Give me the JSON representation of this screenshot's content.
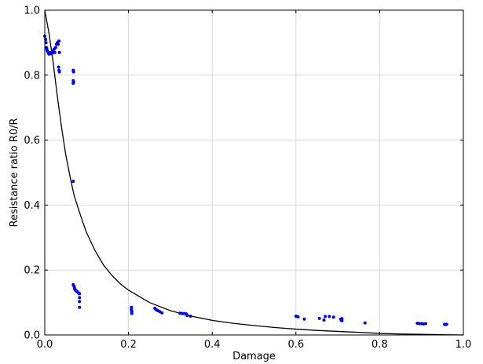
{
  "chart_data": {
    "type": "scatter",
    "title": "",
    "xlabel": "Damage",
    "ylabel": "Resistance ratio R0/R",
    "xlim": [
      0.0,
      1.0
    ],
    "ylim": [
      0.0,
      1.0
    ],
    "grid": true,
    "x_ticks": [
      "0.0",
      "0.2",
      "0.4",
      "0.6",
      "0.8",
      "1.0"
    ],
    "y_ticks": [
      "0.0",
      "0.2",
      "0.4",
      "0.6",
      "0.8",
      "1.0"
    ],
    "colors": {
      "points": "#0000ff",
      "curve": "#000000",
      "grid": "#d9d9d9"
    },
    "series": [
      {
        "type": "scatter",
        "points": [
          [
            0.0,
            0.92
          ],
          [
            0.002,
            0.91
          ],
          [
            0.003,
            0.9
          ],
          [
            0.004,
            0.885
          ],
          [
            0.005,
            0.88
          ],
          [
            0.006,
            0.875
          ],
          [
            0.008,
            0.87
          ],
          [
            0.01,
            0.865
          ],
          [
            0.012,
            0.868
          ],
          [
            0.014,
            0.87
          ],
          [
            0.016,
            0.866
          ],
          [
            0.018,
            0.868
          ],
          [
            0.02,
            0.874
          ],
          [
            0.022,
            0.88
          ],
          [
            0.024,
            0.87
          ],
          [
            0.026,
            0.885
          ],
          [
            0.028,
            0.895
          ],
          [
            0.03,
            0.9
          ],
          [
            0.032,
            0.895
          ],
          [
            0.034,
            0.905
          ],
          [
            0.035,
            0.87
          ],
          [
            0.033,
            0.825
          ],
          [
            0.034,
            0.815
          ],
          [
            0.035,
            0.81
          ],
          [
            0.068,
            0.815
          ],
          [
            0.069,
            0.81
          ],
          [
            0.068,
            0.783
          ],
          [
            0.069,
            0.778
          ],
          [
            0.068,
            0.775
          ],
          [
            0.068,
            0.473
          ],
          [
            0.068,
            0.155
          ],
          [
            0.07,
            0.15
          ],
          [
            0.071,
            0.145
          ],
          [
            0.072,
            0.14
          ],
          [
            0.074,
            0.137
          ],
          [
            0.076,
            0.135
          ],
          [
            0.078,
            0.133
          ],
          [
            0.08,
            0.13
          ],
          [
            0.082,
            0.128
          ],
          [
            0.083,
            0.127
          ],
          [
            0.083,
            0.115
          ],
          [
            0.083,
            0.103
          ],
          [
            0.083,
            0.085
          ],
          [
            0.207,
            0.085
          ],
          [
            0.207,
            0.078
          ],
          [
            0.208,
            0.072
          ],
          [
            0.208,
            0.066
          ],
          [
            0.263,
            0.082
          ],
          [
            0.266,
            0.078
          ],
          [
            0.27,
            0.075
          ],
          [
            0.275,
            0.072
          ],
          [
            0.28,
            0.068
          ],
          [
            0.323,
            0.067
          ],
          [
            0.328,
            0.066
          ],
          [
            0.333,
            0.066
          ],
          [
            0.338,
            0.065
          ],
          [
            0.34,
            0.06
          ],
          [
            0.348,
            0.058
          ],
          [
            0.6,
            0.058
          ],
          [
            0.605,
            0.056
          ],
          [
            0.62,
            0.049
          ],
          [
            0.656,
            0.051
          ],
          [
            0.667,
            0.046
          ],
          [
            0.67,
            0.057
          ],
          [
            0.68,
            0.057
          ],
          [
            0.69,
            0.055
          ],
          [
            0.707,
            0.049
          ],
          [
            0.708,
            0.046
          ],
          [
            0.71,
            0.044
          ],
          [
            0.71,
            0.05
          ],
          [
            0.765,
            0.037
          ],
          [
            0.89,
            0.036
          ],
          [
            0.895,
            0.035
          ],
          [
            0.9,
            0.035
          ],
          [
            0.905,
            0.034
          ],
          [
            0.91,
            0.035
          ],
          [
            0.955,
            0.033
          ],
          [
            0.957,
            0.032
          ],
          [
            0.96,
            0.033
          ]
        ]
      },
      {
        "type": "line",
        "points": [
          [
            0.0,
            1.0
          ],
          [
            0.01,
            0.93
          ],
          [
            0.02,
            0.84
          ],
          [
            0.03,
            0.735
          ],
          [
            0.04,
            0.64
          ],
          [
            0.05,
            0.556
          ],
          [
            0.06,
            0.49
          ],
          [
            0.07,
            0.43
          ],
          [
            0.08,
            0.39
          ],
          [
            0.09,
            0.35
          ],
          [
            0.1,
            0.315
          ],
          [
            0.12,
            0.26
          ],
          [
            0.14,
            0.216
          ],
          [
            0.16,
            0.184
          ],
          [
            0.18,
            0.158
          ],
          [
            0.2,
            0.138
          ],
          [
            0.25,
            0.1
          ],
          [
            0.3,
            0.075
          ],
          [
            0.35,
            0.058
          ],
          [
            0.4,
            0.045
          ],
          [
            0.45,
            0.036
          ],
          [
            0.5,
            0.029
          ],
          [
            0.55,
            0.023
          ],
          [
            0.6,
            0.018
          ],
          [
            0.65,
            0.014
          ],
          [
            0.7,
            0.011
          ],
          [
            0.75,
            0.008
          ],
          [
            0.8,
            0.005
          ],
          [
            0.85,
            0.003
          ],
          [
            0.9,
            0.002
          ],
          [
            0.95,
            0.001
          ],
          [
            1.0,
            0.0
          ]
        ]
      }
    ]
  }
}
